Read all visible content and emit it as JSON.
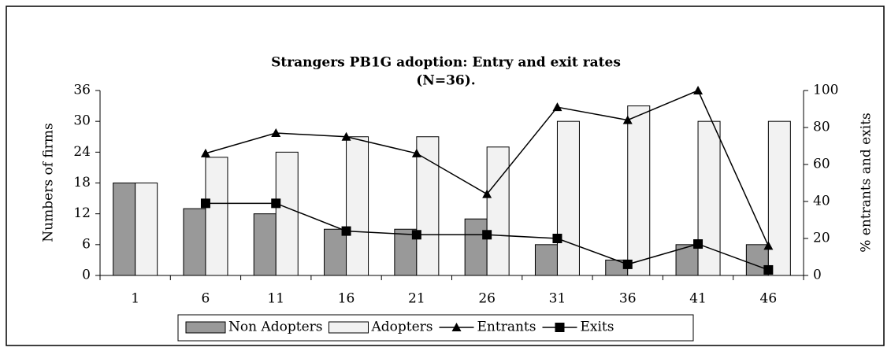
{
  "chart_data": {
    "type": "bar",
    "title": "Strangers PB1G adoption: Entry and exit rates",
    "subtitle": "(N=36).",
    "y_label": "Numbers of firms",
    "y2_label": "% entrants and exits",
    "categories": [
      "1",
      "6",
      "11",
      "16",
      "21",
      "26",
      "31",
      "36",
      "41",
      "46"
    ],
    "series": [
      {
        "name": "Non Adopters",
        "type": "bar",
        "color": "#999999",
        "values": [
          18,
          13,
          12,
          9,
          9,
          11,
          6,
          3,
          6,
          6
        ]
      },
      {
        "name": "Adopters",
        "type": "bar",
        "color": "#f2f2f2",
        "values": [
          18,
          23,
          24,
          27,
          27,
          25,
          30,
          33,
          30,
          30
        ]
      },
      {
        "name": "Entrants",
        "type": "line",
        "axis": "y2",
        "marker": "triangle",
        "color": "#000000",
        "values": [
          null,
          66,
          77,
          75,
          66,
          44,
          91,
          84,
          100,
          16
        ]
      },
      {
        "name": "Exits",
        "type": "line",
        "axis": "y2",
        "marker": "square",
        "color": "#000000",
        "values": [
          null,
          39,
          39,
          24,
          22,
          22,
          20,
          6,
          17,
          3
        ]
      }
    ],
    "ylim": [
      0,
      36
    ],
    "yticks": [
      0,
      6,
      12,
      18,
      24,
      30,
      36
    ],
    "y2lim": [
      0,
      100
    ],
    "y2ticks": [
      0,
      20,
      40,
      60,
      80,
      100
    ],
    "legend": "bottom"
  }
}
